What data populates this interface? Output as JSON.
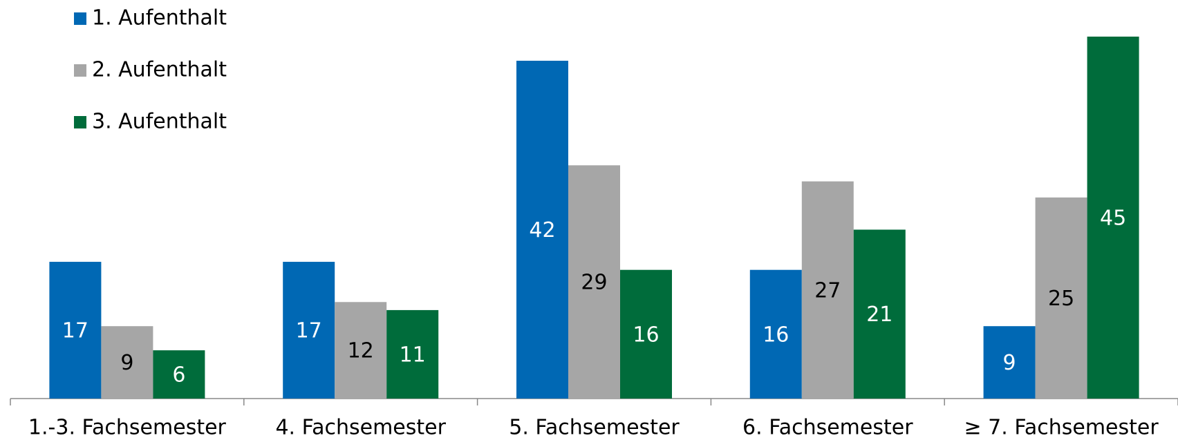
{
  "chart_data": {
    "type": "bar",
    "categories": [
      "1.-3. Fachsemester",
      "4. Fachsemester",
      "5. Fachsemester",
      "6. Fachsemester",
      "≥ 7. Fachsemester"
    ],
    "series": [
      {
        "name": "1. Aufenthalt",
        "color": "#0068b4",
        "label_color": "#ffffff",
        "values": [
          17,
          17,
          42,
          16,
          9
        ]
      },
      {
        "name": "2. Aufenthalt",
        "color": "#a6a6a6",
        "label_color": "#000000",
        "values": [
          9,
          12,
          29,
          27,
          25
        ]
      },
      {
        "name": "3. Aufenthalt",
        "color": "#006c3b",
        "label_color": "#ffffff",
        "values": [
          6,
          11,
          16,
          21,
          45
        ]
      }
    ],
    "ylim": [
      0,
      45
    ],
    "legend": "upper left"
  }
}
